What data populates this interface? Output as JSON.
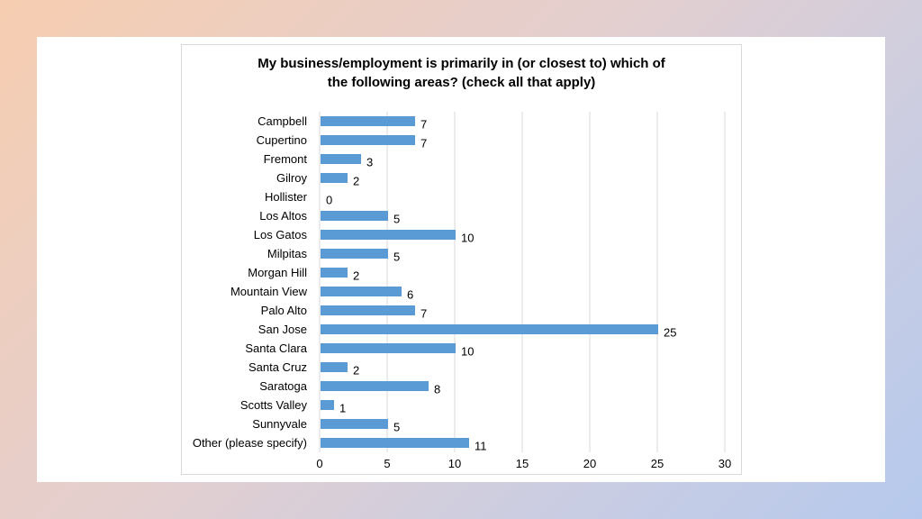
{
  "chart_data": {
    "type": "bar",
    "orientation": "horizontal",
    "title": "My business/employment is primarily in (or closest to) which of the following areas? (check all that apply)",
    "title_lines": [
      "My business/employment is primarily in (or closest to) which of",
      "the following areas? (check all that apply)"
    ],
    "categories": [
      "Campbell",
      "Cupertino",
      "Fremont",
      "Gilroy",
      "Hollister",
      "Los Altos",
      "Los Gatos",
      "Milpitas",
      "Morgan Hill",
      "Mountain View",
      "Palo Alto",
      "San Jose",
      "Santa Clara",
      "Santa Cruz",
      "Saratoga",
      "Scotts Valley",
      "Sunnyvale",
      "Other (please specify)"
    ],
    "values": [
      7,
      7,
      3,
      2,
      0,
      5,
      10,
      5,
      2,
      6,
      7,
      25,
      10,
      2,
      8,
      1,
      5,
      11
    ],
    "xlim": [
      0,
      30
    ],
    "xticks": [
      0,
      5,
      10,
      15,
      20,
      25,
      30
    ],
    "grid": "vertical",
    "legend": "none",
    "data_labels": true,
    "bar_color": "#5b9bd5",
    "grid_color": "#d9d9d9",
    "xlabel": "",
    "ylabel": ""
  }
}
